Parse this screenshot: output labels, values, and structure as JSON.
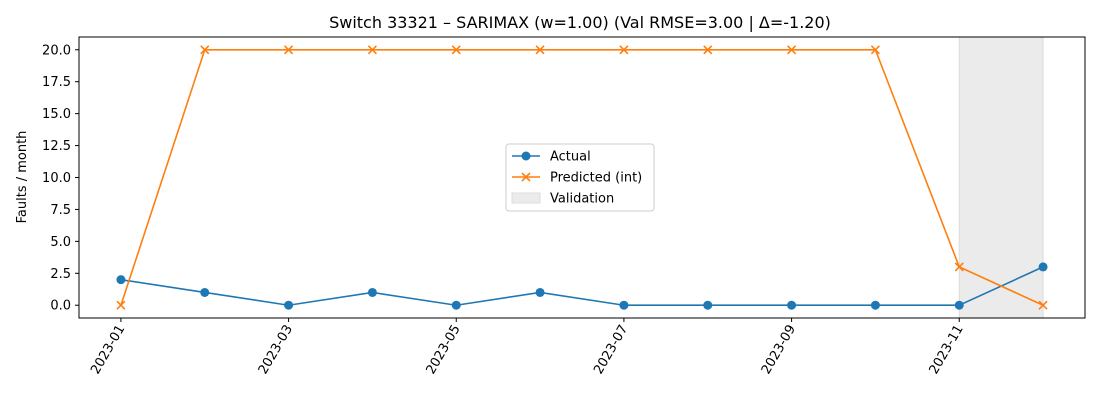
{
  "chart_data": {
    "type": "line",
    "title": "Switch 33321 – SARIMAX (w=1.00) (Val RMSE=3.00 | Δ=-1.20)",
    "xlabel": "",
    "ylabel": "Faults / month",
    "x": [
      "2023-01",
      "2023-02",
      "2023-03",
      "2023-04",
      "2023-05",
      "2023-06",
      "2023-07",
      "2023-08",
      "2023-09",
      "2023-10",
      "2023-11",
      "2023-12"
    ],
    "xticks": [
      "2023-01",
      "2023-03",
      "2023-05",
      "2023-07",
      "2023-09",
      "2023-11"
    ],
    "yticks": [
      "0.0",
      "2.5",
      "5.0",
      "7.5",
      "10.0",
      "12.5",
      "15.0",
      "17.5",
      "20.0"
    ],
    "ylim": [
      -1.0,
      21.0
    ],
    "series": [
      {
        "name": "Actual",
        "color": "#1f77b4",
        "marker": "circle",
        "values": [
          2,
          1,
          0,
          1,
          0,
          1,
          0,
          0,
          0,
          0,
          0,
          3
        ]
      },
      {
        "name": "Predicted (int)",
        "color": "#ff7f0e",
        "marker": "x",
        "values": [
          0,
          20,
          20,
          20,
          20,
          20,
          20,
          20,
          20,
          20,
          3,
          0
        ]
      }
    ],
    "validation": {
      "name": "Validation",
      "start": "2023-11",
      "end": "2023-12",
      "color": "#ebebeb"
    },
    "legend": {
      "position": "center",
      "entries": [
        "Actual",
        "Predicted (int)",
        "Validation"
      ]
    },
    "grid": false
  }
}
